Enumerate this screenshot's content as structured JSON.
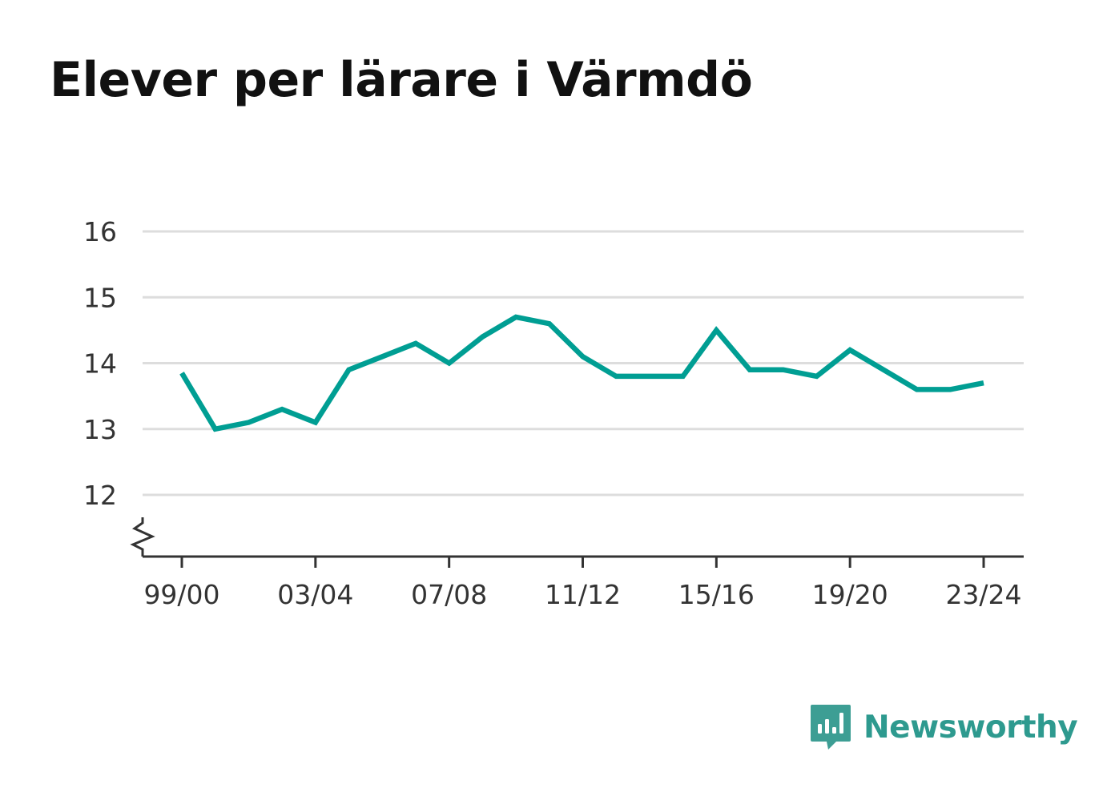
{
  "chart_data": {
    "type": "line",
    "title": "Elever per lärare i Värmdö",
    "xlabel": "",
    "ylabel": "",
    "x": [
      "99/00",
      "00/01",
      "01/02",
      "02/03",
      "03/04",
      "04/05",
      "05/06",
      "06/07",
      "07/08",
      "08/09",
      "09/10",
      "10/11",
      "11/12",
      "12/13",
      "13/14",
      "14/15",
      "15/16",
      "16/17",
      "17/18",
      "18/19",
      "19/20",
      "20/21",
      "21/22",
      "22/23",
      "23/24"
    ],
    "x_tick_labels": [
      "99/00",
      "03/04",
      "07/08",
      "11/12",
      "15/16",
      "19/20",
      "23/24"
    ],
    "series": [
      {
        "name": "",
        "color": "#009e93",
        "values": [
          13.85,
          13.0,
          13.1,
          13.3,
          13.1,
          13.9,
          14.1,
          14.3,
          14.0,
          14.4,
          14.7,
          14.6,
          14.1,
          13.8,
          13.8,
          13.8,
          14.5,
          13.9,
          13.9,
          13.8,
          14.2,
          13.9,
          13.6,
          13.6,
          13.7
        ]
      }
    ],
    "y_ticks": [
      12,
      13,
      14,
      15,
      16
    ],
    "ylim": [
      11.1,
      16
    ],
    "y_axis_break": true,
    "grid": true,
    "legend": "none"
  },
  "brand": {
    "name": "Newsworthy",
    "icon": "newsworthy-logo-icon",
    "color": "#3d9e94"
  }
}
